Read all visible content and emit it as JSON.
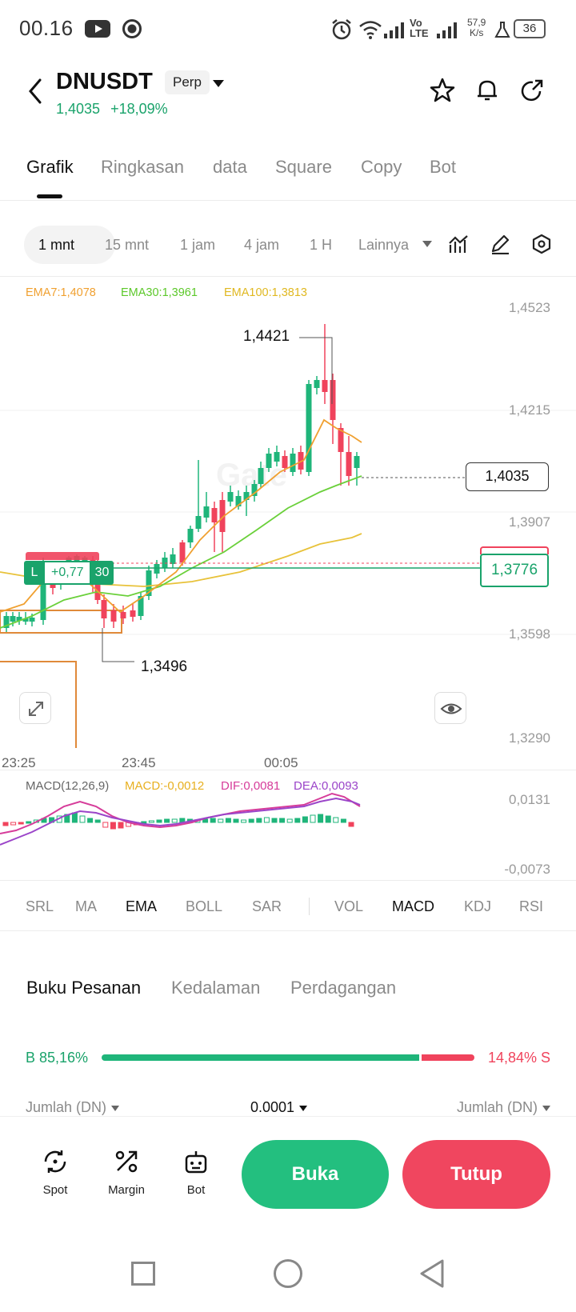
{
  "status_bar": {
    "time": "00.16",
    "speed_value": "57,9",
    "speed_unit": "K/s",
    "network": "Vo LTE",
    "battery": "36"
  },
  "header": {
    "symbol": "DNUSDT",
    "contract_type": "Perp",
    "last_price": "1,4035",
    "change": "+18,09%",
    "icons": [
      "back-icon",
      "star-icon",
      "bell-icon",
      "share-icon"
    ]
  },
  "main_tabs": [
    {
      "label": "Grafik",
      "active": true
    },
    {
      "label": "Ringkasan",
      "active": false
    },
    {
      "label": "data",
      "active": false
    },
    {
      "label": "Square",
      "active": false
    },
    {
      "label": "Copy",
      "active": false
    },
    {
      "label": "Bot",
      "active": false
    }
  ],
  "timeframes": [
    {
      "label": "1 mnt",
      "active": true
    },
    {
      "label": "15 mnt",
      "active": false
    },
    {
      "label": "1 jam",
      "active": false
    },
    {
      "label": "4 jam",
      "active": false
    },
    {
      "label": "1 H",
      "active": false
    },
    {
      "label": "Lainnya",
      "active": false
    }
  ],
  "chart_tools": [
    "indicator-icon",
    "draw-icon",
    "settings-hex-icon"
  ],
  "chart": {
    "ema_legend": {
      "ema7": "EMA7:1,4078",
      "ema30": "EMA30:1,3961",
      "ema100": "EMA100:1,3813"
    },
    "y_ticks": [
      "1,4523",
      "1,4215",
      "1,3907",
      "1,3598",
      "1,3290"
    ],
    "x_ticks": [
      "23:25",
      "23:45",
      "00:05"
    ],
    "high_label": "1,4421",
    "low_label": "1,3496",
    "last_price_tag": "1,4035",
    "position_price_tag": "1,3776",
    "position": {
      "side": "L",
      "pnl": "+0,77",
      "qty": "30"
    },
    "colors": {
      "up": "#1fb57a",
      "down": "#f0435c",
      "ema7": "#f0a030",
      "ema30": "#6ad03a",
      "ema100": "#e8c23a"
    }
  },
  "chart_data": {
    "type": "line",
    "title": "",
    "x": [
      "23:25",
      "23:45",
      "00:05"
    ],
    "ylim": [
      1.329,
      1.4523
    ],
    "series": [
      {
        "name": "EMA7:1,4078",
        "last": 1.4078
      },
      {
        "name": "EMA30:1,3961",
        "last": 1.3961
      },
      {
        "name": "EMA100:1,3813",
        "last": 1.3813
      }
    ],
    "high": 1.4421,
    "low": 1.3496,
    "last_price": 1.4035,
    "position_entry": 1.3776
  },
  "macd": {
    "label": "MACD(12,26,9)",
    "macd": "MACD:-0,0012",
    "dif": "DIF:0,0081",
    "dea": "DEA:0,0093",
    "y_ticks": [
      "0,0131",
      "-0,0073"
    ],
    "colors": {
      "macd": "#e8b020",
      "dif": "#d63c9a",
      "dea": "#9b45c9"
    }
  },
  "indicators": [
    {
      "label": "SRL",
      "active": false
    },
    {
      "label": "MA",
      "active": false
    },
    {
      "label": "EMA",
      "active": true
    },
    {
      "label": "BOLL",
      "active": false
    },
    {
      "label": "SAR",
      "active": false
    },
    {
      "label": "VOL",
      "active": false
    },
    {
      "label": "MACD",
      "active": true
    },
    {
      "label": "KDJ",
      "active": false
    },
    {
      "label": "RSI",
      "active": false
    }
  ],
  "order_book": {
    "tabs": [
      {
        "label": "Buku Pesanan",
        "active": true
      },
      {
        "label": "Kedalaman",
        "active": false
      },
      {
        "label": "Perdagangan",
        "active": false
      }
    ],
    "buy_ratio": "B 85,16%",
    "sell_ratio": "14,84% S",
    "buy_fraction": 0.8516,
    "col_left": "Jumlah (DN)",
    "precision": "0.0001",
    "col_right": "Jumlah (DN)"
  },
  "actions": {
    "spot": "Spot",
    "margin": "Margin",
    "bot": "Bot",
    "open": "Buka",
    "close": "Tutup"
  }
}
